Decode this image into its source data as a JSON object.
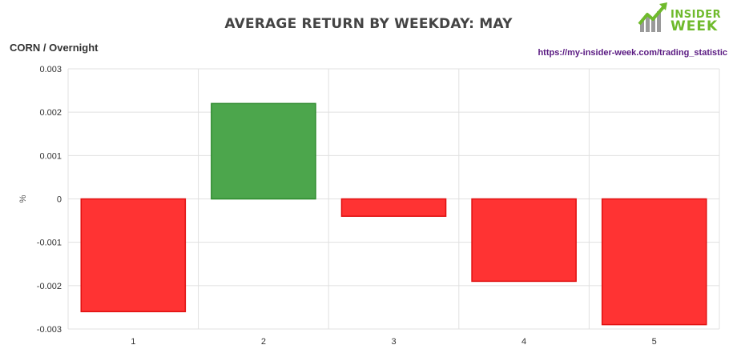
{
  "header": {
    "title": "AVERAGE RETURN BY WEEKDAY: MAY",
    "subtitle": "CORN / Overnight",
    "link": "https://my-insider-week.com/trading_statistic",
    "logo_line1": "INSIDER",
    "logo_line2": "WEEK"
  },
  "chart_data": {
    "type": "bar",
    "categories": [
      "1",
      "2",
      "3",
      "4",
      "5"
    ],
    "values": [
      -0.0026,
      0.0022,
      -0.0004,
      -0.0019,
      -0.0029
    ],
    "ylabel": "%",
    "ylim": [
      -0.003,
      0.003
    ],
    "yticks": [
      0.003,
      0.002,
      0.001,
      0,
      -0.001,
      -0.002,
      -0.003
    ],
    "ytick_labels": [
      "0.003",
      "0.002",
      "0.001",
      "0",
      "-0.001",
      "-0.002",
      "-0.003"
    ],
    "grid": true,
    "colors": {
      "positive_fill": "#4ca64c",
      "positive_stroke": "#2e8b2e",
      "negative_fill": "#ff3333",
      "negative_stroke": "#e01010",
      "grid": "#e0e0e0"
    }
  }
}
